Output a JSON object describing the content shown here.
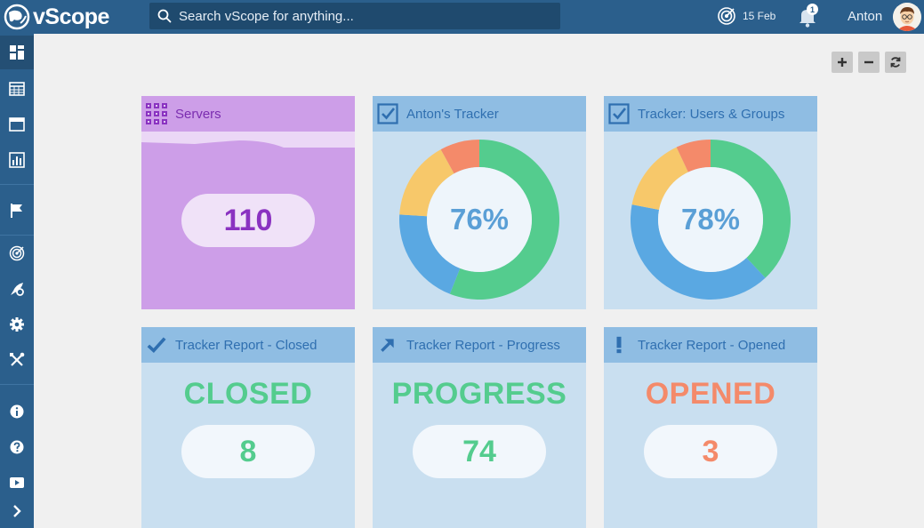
{
  "app": {
    "name": "vScope"
  },
  "search": {
    "placeholder": "Search vScope for anything..."
  },
  "header": {
    "date": "15 Feb",
    "notification_count": "1",
    "user": "Anton"
  },
  "toolbar": {
    "icons": [
      "plus-icon",
      "minus-icon",
      "refresh-icon"
    ]
  },
  "sidebar": {
    "icons": [
      "dashboard-icon",
      "table-icon",
      "window-icon",
      "chart-icon",
      "flag-icon",
      "radar-icon",
      "rocket-gear-icon",
      "gear-icon",
      "tools-icon",
      "info-icon",
      "help-icon",
      "video-icon",
      "chevron-right-icon"
    ]
  },
  "colors": {
    "topbar": "#2b5f8c",
    "card": "#c9dff0",
    "card_header": "#8fbde3",
    "servers": "#cd9ee8",
    "green": "#54cc8e",
    "blue": "#5aa8e2",
    "yellow": "#f7c86a",
    "orange": "#f48a6a"
  },
  "cards": {
    "servers": {
      "title": "Servers",
      "value": "110"
    },
    "antons_tracker": {
      "title": "Anton's Tracker",
      "percent": "76%",
      "segments": [
        {
          "label": "green",
          "value": 0.56,
          "color": "#54cc8e"
        },
        {
          "label": "blue",
          "value": 0.2,
          "color": "#5aa8e2"
        },
        {
          "label": "yellow",
          "value": 0.16,
          "color": "#f7c86a"
        },
        {
          "label": "orange",
          "value": 0.08,
          "color": "#f48a6a"
        }
      ]
    },
    "users_groups": {
      "title": "Tracker: Users & Groups",
      "percent": "78%",
      "segments": [
        {
          "label": "green",
          "value": 0.38,
          "color": "#54cc8e"
        },
        {
          "label": "blue",
          "value": 0.4,
          "color": "#5aa8e2"
        },
        {
          "label": "yellow",
          "value": 0.15,
          "color": "#f7c86a"
        },
        {
          "label": "orange",
          "value": 0.07,
          "color": "#f48a6a"
        }
      ]
    },
    "closed": {
      "title": "Tracker Report - Closed",
      "status": "CLOSED",
      "value": "8",
      "color": "#54cc8e"
    },
    "progress": {
      "title": "Tracker Report - Progress",
      "status": "PROGRESS",
      "value": "74",
      "color": "#54cc8e"
    },
    "opened": {
      "title": "Tracker Report - Opened",
      "status": "OPENED",
      "value": "3",
      "color": "#f48a6a"
    }
  }
}
